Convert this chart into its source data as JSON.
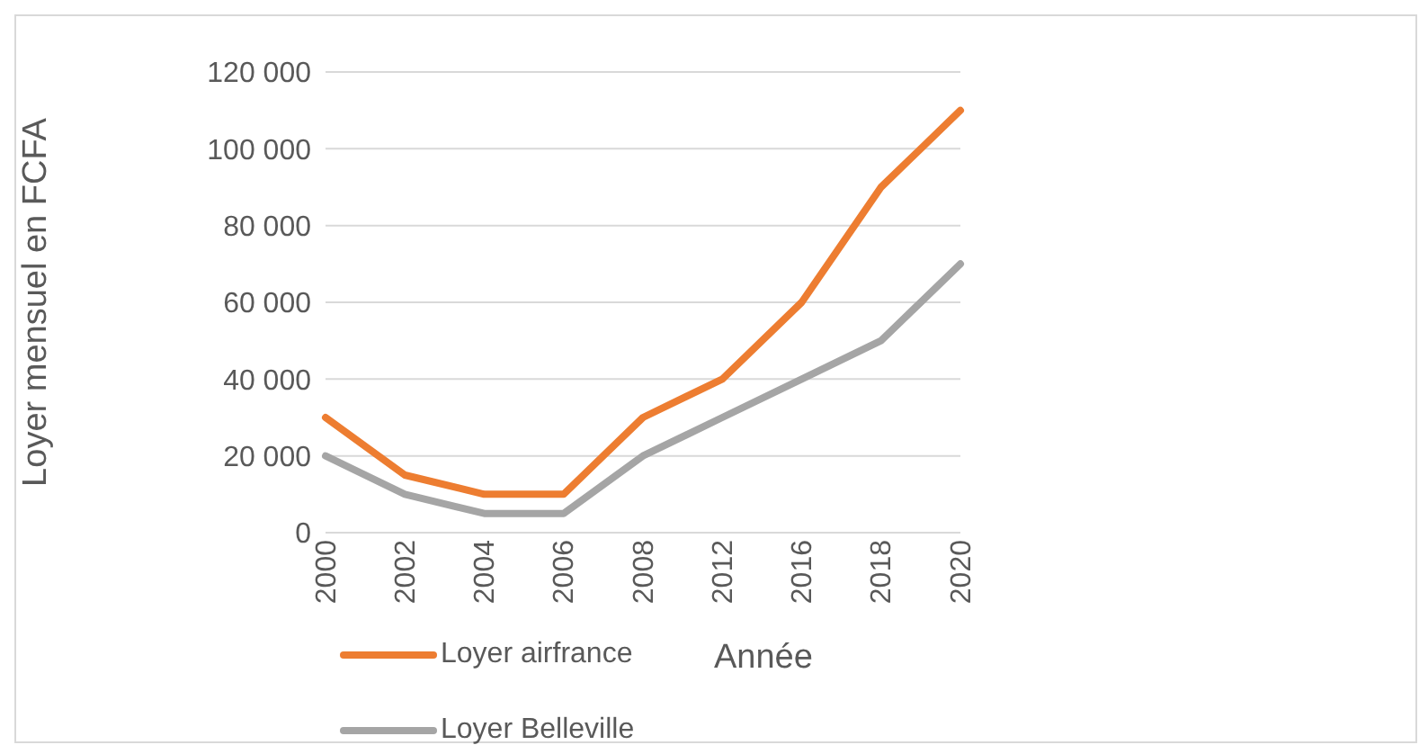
{
  "chart_data": {
    "type": "line",
    "xlabel": "Année",
    "ylabel": "Loyer mensuel en FCFA",
    "categories": [
      "2000",
      "2002",
      "2004",
      "2006",
      "2008",
      "2012",
      "2016",
      "2018",
      "2020"
    ],
    "series": [
      {
        "name": "Loyer airfrance",
        "color": "#ed7d31",
        "values": [
          30000,
          15000,
          10000,
          10000,
          30000,
          40000,
          60000,
          90000,
          110000
        ]
      },
      {
        "name": "Loyer Belleville",
        "color": "#a5a5a5",
        "values": [
          20000,
          10000,
          5000,
          5000,
          20000,
          30000,
          40000,
          50000,
          70000
        ]
      }
    ],
    "ylim": [
      0,
      120000
    ],
    "yticks": [
      {
        "value": 0,
        "label": "0"
      },
      {
        "value": 20000,
        "label": "20 000"
      },
      {
        "value": 40000,
        "label": "40 000"
      },
      {
        "value": 60000,
        "label": "60 000"
      },
      {
        "value": 80000,
        "label": "80 000"
      },
      {
        "value": 100000,
        "label": "100 000"
      },
      {
        "value": 120000,
        "label": "120 000"
      }
    ],
    "grid": "y",
    "legend": "bottom",
    "marker": "none",
    "line_style": "solid"
  }
}
